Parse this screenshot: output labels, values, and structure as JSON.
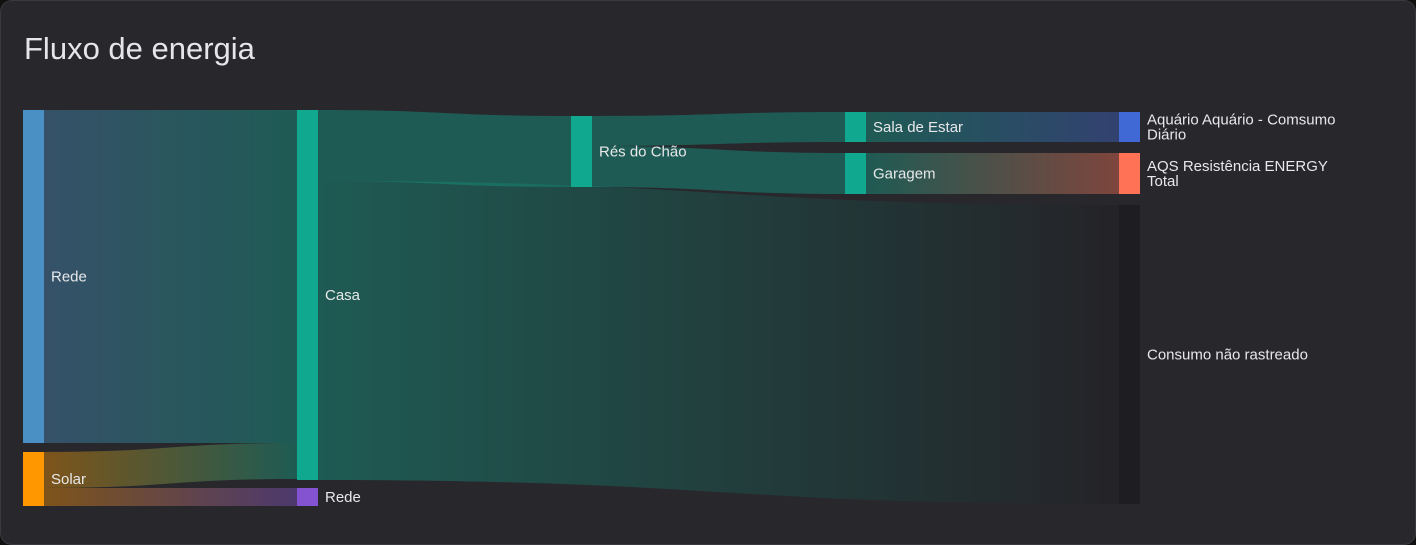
{
  "card": {
    "title": "Fluxo de energia"
  },
  "chart_data": {
    "type": "sankey",
    "nodes": [
      {
        "id": "rede_in",
        "label": "Rede",
        "color": "#4a90c4"
      },
      {
        "id": "solar",
        "label": "Solar",
        "color": "#ff9800"
      },
      {
        "id": "casa",
        "label": "Casa",
        "color": "#10a98f"
      },
      {
        "id": "rede_out",
        "label": "Rede",
        "color": "#8353d1"
      },
      {
        "id": "res",
        "label": "Rés do Chão",
        "color": "#10a98f"
      },
      {
        "id": "sala",
        "label": "Sala de Estar",
        "color": "#10a98f"
      },
      {
        "id": "garagem",
        "label": "Garagem",
        "color": "#10a98f"
      },
      {
        "id": "aquario",
        "label": "Aquário Aquário - Comsumo Diário",
        "lines": [
          "Aquário Aquário - Comsumo",
          "Diário"
        ],
        "color": "#4169d6"
      },
      {
        "id": "aqs",
        "label": "AQS Resistência ENERGY Total",
        "lines": [
          "AQS Resistência ENERGY",
          "Total"
        ],
        "color": "#ff7256"
      },
      {
        "id": "untracked",
        "label": "Consumo não rastreado",
        "color": "#1e1d21"
      }
    ],
    "links": [
      {
        "source": "rede_in",
        "target": "casa",
        "value": 333
      },
      {
        "source": "solar",
        "target": "casa",
        "value": 36
      },
      {
        "source": "solar",
        "target": "rede_out",
        "value": 18
      },
      {
        "source": "casa",
        "target": "res",
        "value": 71
      },
      {
        "source": "casa",
        "target": "untracked",
        "value": 299
      },
      {
        "source": "res",
        "target": "sala",
        "value": 30
      },
      {
        "source": "res",
        "target": "garagem",
        "value": 41
      },
      {
        "source": "sala",
        "target": "aquario",
        "value": 30
      },
      {
        "source": "garagem",
        "target": "aqs",
        "value": 41
      }
    ]
  }
}
